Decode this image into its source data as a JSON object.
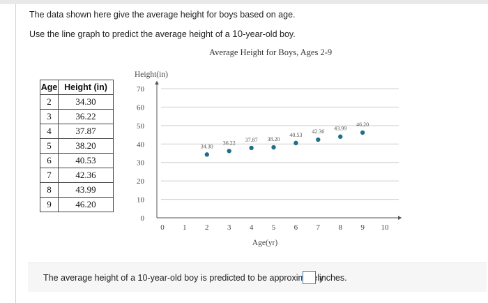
{
  "question": {
    "line1": "The data shown here give the average height for boys based on age.",
    "line2_pre": "Use the line graph to predict the average height of a ",
    "line2_num": "10",
    "line2_post": "-year-old boy."
  },
  "table": {
    "headers": [
      "Age",
      "Height (in)"
    ],
    "rows": [
      [
        "2",
        "34.30"
      ],
      [
        "3",
        "36.22"
      ],
      [
        "4",
        "37.87"
      ],
      [
        "5",
        "38.20"
      ],
      [
        "6",
        "40.53"
      ],
      [
        "7",
        "42.36"
      ],
      [
        "8",
        "43.99"
      ],
      [
        "9",
        "46.20"
      ]
    ]
  },
  "chart_data": {
    "type": "scatter",
    "title": "Average Height for Boys, Ages 2-9",
    "xlabel": "Age(yr)",
    "ylabel": "Height(in)",
    "xlim": [
      0,
      10
    ],
    "ylim": [
      0,
      70
    ],
    "x_ticks": [
      "0",
      "1",
      "2",
      "3",
      "4",
      "5",
      "6",
      "7",
      "8",
      "9",
      "10"
    ],
    "y_ticks": [
      "0",
      "10",
      "20",
      "30",
      "40",
      "50",
      "60",
      "70"
    ],
    "grid": true,
    "point_color": "#1f6f8b",
    "x": [
      2,
      3,
      4,
      5,
      6,
      7,
      8,
      9
    ],
    "y": [
      34.3,
      36.22,
      37.87,
      38.2,
      40.53,
      42.36,
      43.99,
      46.2
    ],
    "data_labels": [
      "34.30",
      "36.22",
      "37.87",
      "38.20",
      "40.53",
      "42.36",
      "43.99",
      "46.20"
    ]
  },
  "answer": {
    "prompt": "The average height of a 10-year-old boy is predicted to be approximately",
    "value": "",
    "unit": "inches."
  }
}
